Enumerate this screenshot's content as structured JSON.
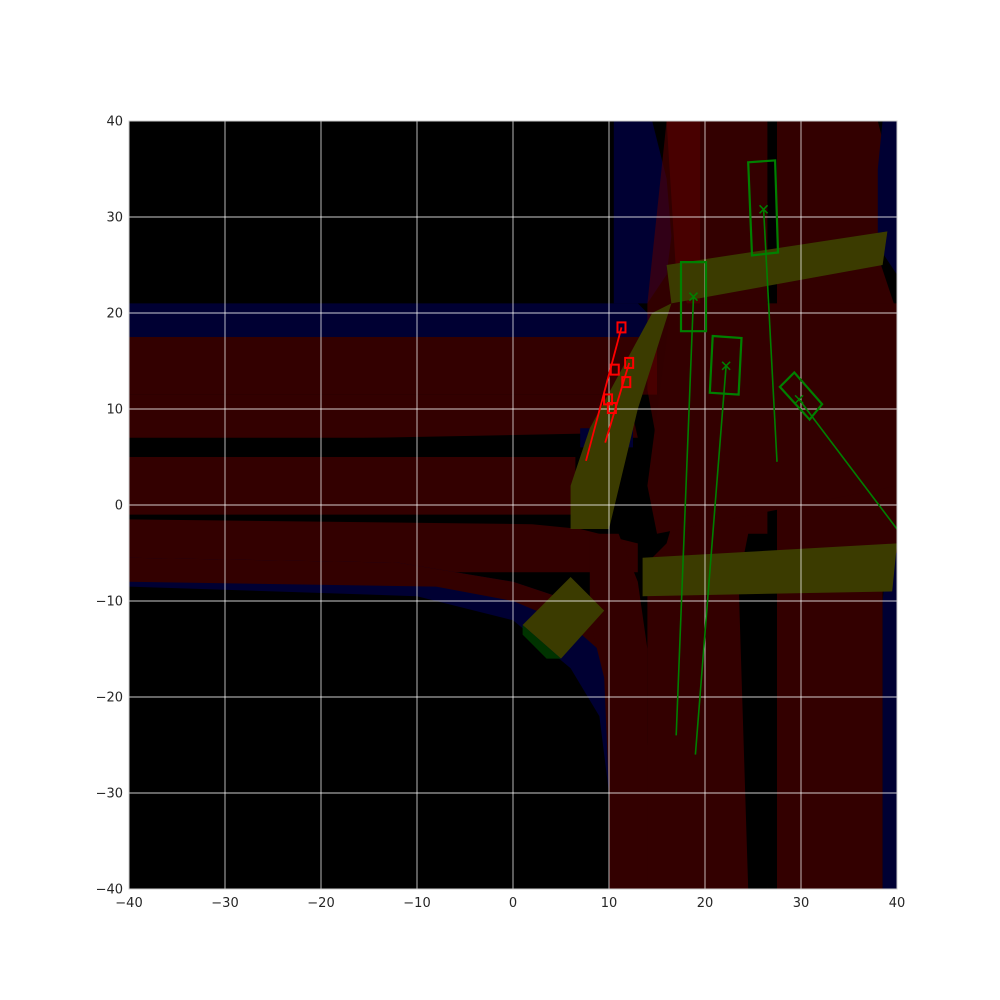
{
  "chart_data": {
    "type": "scatter",
    "title": "",
    "xlabel": "",
    "ylabel": "",
    "xlim": [
      -40,
      40
    ],
    "ylim": [
      -40,
      40
    ],
    "xticks": [
      -40,
      -30,
      -20,
      -10,
      0,
      10,
      20,
      30,
      40
    ],
    "yticks": [
      -40,
      -30,
      -20,
      -10,
      0,
      10,
      20,
      30,
      40
    ],
    "grid": true,
    "colors": {
      "background": "#000000",
      "lane": "#330000",
      "lane_overlay": "#5a0000",
      "sidewalk": "#000033",
      "crosswalk": "#3b3b00",
      "crosswalk_dark": "#003300",
      "grid": "#ffffff",
      "agents": "#008000",
      "ego_trajectory": "#ff0000"
    },
    "map_layers": [
      {
        "kind": "sidewalk",
        "points": [
          [
            -40,
            21
          ],
          [
            13,
            21
          ],
          [
            15,
            19
          ],
          [
            15,
            17.5
          ],
          [
            -40,
            17.5
          ]
        ]
      },
      {
        "kind": "sidewalk",
        "points": [
          [
            10.5,
            40
          ],
          [
            14.5,
            40
          ],
          [
            16,
            34
          ],
          [
            16.5,
            28
          ],
          [
            16,
            24
          ],
          [
            14,
            21
          ],
          [
            10.5,
            21
          ]
        ]
      },
      {
        "kind": "lane",
        "points": [
          [
            -40,
            17.5
          ],
          [
            15,
            17.5
          ],
          [
            15,
            11.5
          ],
          [
            -40,
            11.5
          ]
        ]
      },
      {
        "kind": "lane",
        "points": [
          [
            -40,
            11.5
          ],
          [
            12,
            11.5
          ],
          [
            13,
            7
          ],
          [
            -40,
            7
          ]
        ]
      },
      {
        "kind": "lane",
        "points": [
          [
            -40,
            5
          ],
          [
            6.5,
            5
          ],
          [
            6.5,
            -1
          ],
          [
            -40,
            -1
          ]
        ]
      },
      {
        "kind": "lane",
        "points": [
          [
            -40,
            -1.5
          ],
          [
            2,
            -2
          ],
          [
            7,
            -2.5
          ],
          [
            13,
            -4
          ],
          [
            13,
            -7
          ],
          [
            -40,
            -7
          ]
        ]
      },
      {
        "kind": "sidewalk",
        "points": [
          [
            -40,
            -5.5
          ],
          [
            -12,
            -6
          ],
          [
            0,
            -8
          ],
          [
            6,
            -10
          ],
          [
            10,
            -13
          ],
          [
            13,
            -18
          ],
          [
            14,
            -25
          ],
          [
            14,
            -40
          ],
          [
            10,
            -40
          ],
          [
            10,
            -30
          ],
          [
            9,
            -22
          ],
          [
            6,
            -17
          ],
          [
            0,
            -12
          ],
          [
            -10,
            -9.5
          ],
          [
            -40,
            -8.5
          ]
        ]
      },
      {
        "kind": "lane",
        "points": [
          [
            -40,
            -8
          ],
          [
            -8,
            -8.5
          ],
          [
            0,
            -10
          ],
          [
            6,
            -12.5
          ],
          [
            10,
            -16
          ],
          [
            12,
            -22
          ],
          [
            13,
            -30
          ],
          [
            13,
            -40
          ],
          [
            14,
            -40
          ],
          [
            14,
            -25
          ],
          [
            13,
            -18
          ],
          [
            10,
            -13
          ],
          [
            6,
            -10
          ],
          [
            0,
            -8
          ],
          [
            -12,
            -6
          ],
          [
            -40,
            -5.5
          ]
        ]
      },
      {
        "kind": "lane",
        "points": [
          [
            8,
            -3
          ],
          [
            11,
            -3
          ],
          [
            13,
            -8
          ],
          [
            14,
            -15
          ],
          [
            14,
            -40
          ],
          [
            10,
            -40
          ],
          [
            10,
            -30
          ],
          [
            9.5,
            -18
          ],
          [
            8,
            -12
          ]
        ]
      },
      {
        "kind": "lane",
        "points": [
          [
            16,
            40
          ],
          [
            26.5,
            40
          ],
          [
            26.5,
            -40
          ],
          [
            14,
            -40
          ],
          [
            14,
            -6
          ],
          [
            16,
            -4
          ],
          [
            18,
            3
          ],
          [
            19.5,
            12
          ],
          [
            18.5,
            20
          ],
          [
            17,
            24
          ]
        ]
      },
      {
        "kind": "lane_overlay",
        "points": [
          [
            16,
            40
          ],
          [
            19.5,
            40
          ],
          [
            19.5,
            2
          ],
          [
            16,
            1
          ],
          [
            14,
            12
          ],
          [
            14,
            21
          ]
        ]
      },
      {
        "kind": "lane",
        "points": [
          [
            27.5,
            40
          ],
          [
            38,
            40
          ],
          [
            39,
            36
          ],
          [
            38,
            26
          ],
          [
            40,
            20
          ],
          [
            40,
            -40
          ],
          [
            27.5,
            -40
          ]
        ]
      },
      {
        "kind": "lane",
        "points": [
          [
            16.5,
            21
          ],
          [
            40,
            21
          ],
          [
            40,
            2
          ],
          [
            15,
            -3
          ],
          [
            14,
            2
          ]
        ]
      },
      {
        "kind": "background",
        "points": [
          [
            24.5,
            -3
          ],
          [
            26.5,
            -3
          ],
          [
            27,
            -8
          ],
          [
            26.5,
            -40
          ],
          [
            24.5,
            -40
          ],
          [
            23.5,
            -8
          ]
        ]
      },
      {
        "kind": "background",
        "points": [
          [
            38.5,
            -40
          ],
          [
            40,
            -40
          ],
          [
            40,
            -7
          ],
          [
            38.5,
            -7
          ]
        ]
      },
      {
        "kind": "sidewalk",
        "points": [
          [
            38.5,
            40
          ],
          [
            40,
            40
          ],
          [
            40,
            24
          ],
          [
            38,
            27
          ],
          [
            38,
            35
          ]
        ]
      },
      {
        "kind": "sidewalk",
        "points": [
          [
            39,
            -5
          ],
          [
            40,
            -5
          ],
          [
            40,
            -40
          ],
          [
            38.5,
            -40
          ],
          [
            38.5,
            -10
          ]
        ]
      },
      {
        "kind": "background",
        "points": [
          [
            -40,
            6.5
          ],
          [
            10.5,
            7.5
          ],
          [
            10.5,
            5.5
          ],
          [
            -40,
            5
          ]
        ]
      },
      {
        "kind": "sidewalk",
        "points": [
          [
            7,
            8
          ],
          [
            12.5,
            8
          ],
          [
            12.5,
            6
          ],
          [
            7,
            6
          ]
        ]
      },
      {
        "kind": "crosswalk",
        "points": [
          [
            16,
            25
          ],
          [
            39,
            28.5
          ],
          [
            38.5,
            25
          ],
          [
            16.5,
            21
          ]
        ]
      },
      {
        "kind": "crosswalk",
        "points": [
          [
            14.5,
            20
          ],
          [
            16.5,
            21
          ],
          [
            13,
            10
          ],
          [
            10,
            -2.5
          ],
          [
            6,
            -2.5
          ],
          [
            6,
            2
          ],
          [
            8,
            8
          ]
        ]
      },
      {
        "kind": "crosswalk",
        "points": [
          [
            13.5,
            -5.5
          ],
          [
            40,
            -4
          ],
          [
            39.5,
            -9
          ],
          [
            13.5,
            -9.5
          ]
        ]
      },
      {
        "kind": "crosswalk",
        "points": [
          [
            1,
            -12.5
          ],
          [
            6,
            -7.5
          ],
          [
            9.5,
            -11
          ],
          [
            5,
            -16
          ]
        ]
      },
      {
        "kind": "crosswalk_dark",
        "points": [
          [
            1,
            -12.5
          ],
          [
            5,
            -16
          ],
          [
            3.5,
            -16
          ],
          [
            1,
            -13.5
          ]
        ]
      }
    ],
    "agents": [
      {
        "id": 1,
        "center": [
          18.8,
          21.7
        ],
        "corners": [
          [
            17.5,
            25.3
          ],
          [
            20.1,
            25.3
          ],
          [
            20.1,
            18.1
          ],
          [
            17.5,
            18.1
          ]
        ],
        "trajectory": [
          [
            18.8,
            21.7
          ],
          [
            17,
            -24
          ]
        ]
      },
      {
        "id": 2,
        "center": [
          22.2,
          14.5
        ],
        "corners": [
          [
            20.8,
            17.6
          ],
          [
            23.8,
            17.4
          ],
          [
            23.5,
            11.5
          ],
          [
            20.5,
            11.7
          ]
        ],
        "trajectory": [
          [
            22.2,
            14.5
          ],
          [
            19,
            -26
          ]
        ]
      },
      {
        "id": 3,
        "center": [
          26.1,
          30.8
        ],
        "corners": [
          [
            24.5,
            35.7
          ],
          [
            27.3,
            35.9
          ],
          [
            27.6,
            26.3
          ],
          [
            24.9,
            26.0
          ]
        ],
        "trajectory": [
          [
            26.1,
            30.8
          ],
          [
            27.5,
            4.5
          ]
        ]
      },
      {
        "id": 4,
        "center": [
          29.8,
          11.0
        ],
        "corners": [
          [
            27.8,
            12.3
          ],
          [
            29.3,
            13.8
          ],
          [
            32.2,
            10.5
          ],
          [
            30.9,
            8.9
          ]
        ],
        "trajectory": [
          [
            29.8,
            11.0
          ],
          [
            40,
            -2.5
          ]
        ]
      }
    ],
    "ego_trajectories": [
      {
        "segment": [
          [
            7.6,
            4.6
          ],
          [
            11.3,
            18.5
          ]
        ],
        "markers": [
          [
            11.3,
            18.5
          ],
          [
            10.6,
            14.1
          ],
          [
            9.9,
            11.0
          ]
        ]
      },
      {
        "segment": [
          [
            9.6,
            6.5
          ],
          [
            12.1,
            14.8
          ]
        ],
        "markers": [
          [
            12.1,
            14.8
          ],
          [
            11.8,
            12.8
          ],
          [
            10.3,
            10.1
          ]
        ]
      }
    ]
  }
}
